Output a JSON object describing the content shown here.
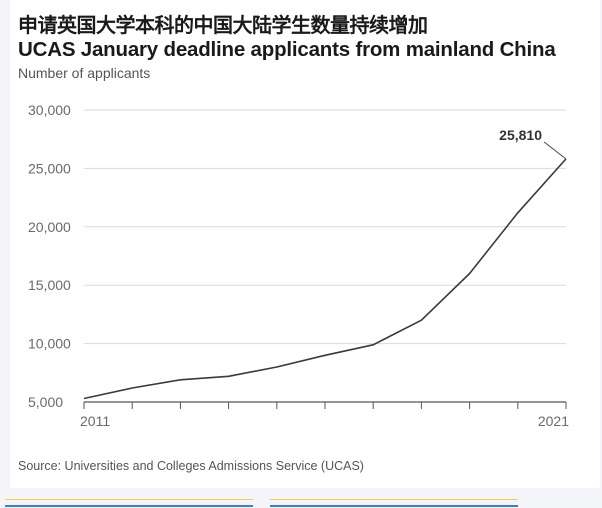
{
  "header": {
    "title_cn": "申请英国大学本科的中国大陆学生数量持续增加",
    "title_en": "UCAS January deadline applicants from mainland China",
    "subtitle": "Number of applicants"
  },
  "footer": {
    "source": "Source: Universities and Colleges Admissions Service (UCAS)"
  },
  "colors": {
    "line": "#3a3a3a",
    "grid": "#d9d9d9",
    "axis": "#555555",
    "accent_yellow": "#f2cf4f",
    "accent_blue": "#3a7fd8"
  },
  "chart_data": {
    "type": "line",
    "title": "UCAS January deadline applicants from mainland China",
    "subtitle": "Number of applicants",
    "xlabel": "",
    "ylabel": "Number of applicants",
    "x": [
      2011,
      2012,
      2013,
      2014,
      2015,
      2016,
      2017,
      2018,
      2019,
      2020,
      2021
    ],
    "x_tick_labels": [
      "2011",
      "2021"
    ],
    "series": [
      {
        "name": "Applicants from mainland China",
        "values": [
          5300,
          6200,
          6900,
          7200,
          8000,
          9000,
          9900,
          12000,
          16000,
          21200,
          25810
        ]
      }
    ],
    "ylim": [
      5000,
      30000
    ],
    "y_ticks": [
      5000,
      10000,
      15000,
      20000,
      25000,
      30000
    ],
    "y_tick_labels": [
      "5,000",
      "10,000",
      "15,000",
      "20,000",
      "25,000",
      "30,000"
    ],
    "grid": true,
    "annotations": [
      {
        "x": 2021,
        "y": 25810,
        "text": "25,810"
      }
    ],
    "source": "Source: Universities and Colleges Admissions Service (UCAS)"
  }
}
